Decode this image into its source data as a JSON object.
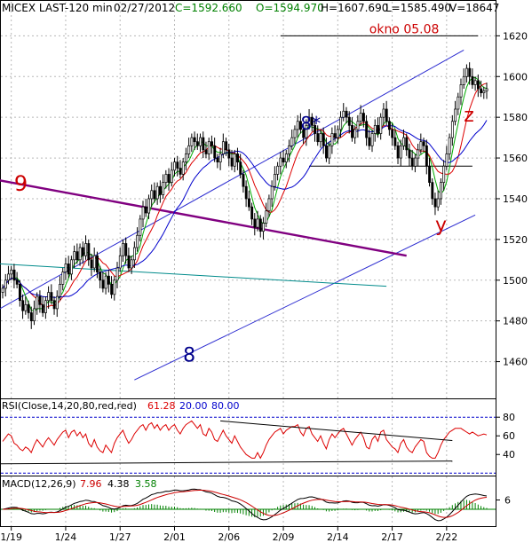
{
  "chart_data": [
    {
      "type": "candlestick",
      "panel": "price",
      "header": {
        "symbol": "MICEX LAST-120 min",
        "date": "02/27/2012",
        "close": "C=1592.660",
        "open": "O=1594.970",
        "high": "H=1607.690",
        "low": "L=1585.490",
        "volume": "V=18647"
      },
      "ylim": [
        1445,
        1628
      ],
      "y_ticks": [
        {
          "v": 1460,
          "label": "1460"
        },
        {
          "v": 1480,
          "label": "1480"
        },
        {
          "v": 1500,
          "label": "1500"
        },
        {
          "v": 1520,
          "label": "1520"
        },
        {
          "v": 1540,
          "label": "1540"
        },
        {
          "v": 1560,
          "label": "1560"
        },
        {
          "v": 1580,
          "label": "1580"
        },
        {
          "v": 1600,
          "label": "1600"
        },
        {
          "v": 1620,
          "label": "1620"
        }
      ],
      "x_ticks": [
        {
          "bar": 3,
          "label": "1/19"
        },
        {
          "bar": 22,
          "label": "1/24"
        },
        {
          "bar": 41,
          "label": "1/27"
        },
        {
          "bar": 60,
          "label": "2/01"
        },
        {
          "bar": 79,
          "label": "2/06"
        },
        {
          "bar": 98,
          "label": "2/09"
        },
        {
          "bar": 117,
          "label": "2/14"
        },
        {
          "bar": 136,
          "label": "2/17"
        },
        {
          "bar": 155,
          "label": "2/22"
        }
      ],
      "bar_count": 170,
      "closes": [
        1496,
        1500,
        1503,
        1505,
        1500,
        1498,
        1490,
        1485,
        1488,
        1484,
        1480,
        1486,
        1492,
        1488,
        1484,
        1490,
        1494,
        1490,
        1486,
        1492,
        1498,
        1504,
        1508,
        1503,
        1510,
        1514,
        1510,
        1516,
        1512,
        1518,
        1510,
        1506,
        1512,
        1504,
        1500,
        1496,
        1502,
        1498,
        1493,
        1500,
        1506,
        1512,
        1518,
        1512,
        1506,
        1510,
        1516,
        1522,
        1530,
        1536,
        1533,
        1540,
        1544,
        1540,
        1546,
        1542,
        1548,
        1552,
        1548,
        1554,
        1558,
        1555,
        1552,
        1558,
        1562,
        1566,
        1570,
        1568,
        1566,
        1570,
        1564,
        1562,
        1568,
        1566,
        1560,
        1558,
        1562,
        1568,
        1564,
        1560,
        1556,
        1562,
        1558,
        1552,
        1546,
        1540,
        1536,
        1530,
        1526,
        1530,
        1524,
        1528,
        1534,
        1540,
        1546,
        1552,
        1556,
        1560,
        1558,
        1562,
        1566,
        1570,
        1574,
        1578,
        1574,
        1570,
        1576,
        1580,
        1576,
        1572,
        1568,
        1572,
        1566,
        1560,
        1566,
        1572,
        1570,
        1574,
        1580,
        1583,
        1580,
        1576,
        1570,
        1574,
        1578,
        1582,
        1578,
        1570,
        1566,
        1572,
        1576,
        1572,
        1580,
        1584,
        1578,
        1574,
        1570,
        1566,
        1560,
        1566,
        1570,
        1564,
        1560,
        1556,
        1560,
        1564,
        1568,
        1566,
        1556,
        1548,
        1540,
        1536,
        1540,
        1548,
        1556,
        1562,
        1570,
        1578,
        1584,
        1590,
        1596,
        1600,
        1604,
        1600,
        1596,
        1598,
        1594,
        1592,
        1593,
        1594
      ],
      "annotations": [
        {
          "text": "okno 05.08",
          "v": 1620,
          "color": "#cc0000"
        },
        {
          "text": "8*",
          "v": 1574,
          "color": "#00008b"
        },
        {
          "text": "9",
          "v": 1544,
          "color": "#cc0000"
        },
        {
          "text": "8",
          "v": 1460,
          "color": "#00008b"
        },
        {
          "text": "y",
          "v": 1524,
          "color": "#cc0000"
        },
        {
          "text": "z",
          "v": 1578,
          "color": "#cc0000"
        }
      ],
      "colors": {
        "candles": "#000000",
        "channel": "#2b2bd0",
        "trend_9": "#800080",
        "teal_line": "#008b8b",
        "ma_fast": "#00aa00",
        "ma_mid": "#dd0000",
        "ma_slow": "#0000cc"
      }
    },
    {
      "type": "line",
      "panel": "rsi",
      "label": "RSI(Close,14,20,80,red,red)",
      "value_1": "61.28",
      "value_2": "20.00",
      "value_3": "80.00",
      "ylim": [
        25,
        84
      ],
      "y_ticks": [
        {
          "v": 40,
          "label": "40"
        },
        {
          "v": 60,
          "label": "60"
        },
        {
          "v": 80,
          "label": "80"
        }
      ],
      "levels": [
        20,
        80
      ],
      "values": [
        54,
        58,
        62,
        60,
        52,
        50,
        46,
        44,
        48,
        46,
        42,
        50,
        56,
        52,
        48,
        54,
        58,
        54,
        50,
        56,
        60,
        64,
        66,
        58,
        64,
        66,
        60,
        64,
        58,
        62,
        52,
        48,
        56,
        48,
        44,
        42,
        50,
        46,
        42,
        52,
        58,
        62,
        66,
        58,
        52,
        56,
        62,
        66,
        70,
        72,
        66,
        72,
        74,
        68,
        72,
        66,
        70,
        72,
        66,
        70,
        72,
        66,
        62,
        68,
        72,
        74,
        76,
        72,
        68,
        72,
        62,
        60,
        68,
        64,
        56,
        54,
        60,
        66,
        60,
        56,
        52,
        60,
        54,
        48,
        44,
        40,
        38,
        36,
        36,
        42,
        36,
        42,
        50,
        56,
        60,
        64,
        66,
        68,
        62,
        66,
        68,
        70,
        70,
        72,
        64,
        60,
        68,
        70,
        62,
        58,
        54,
        60,
        52,
        46,
        56,
        62,
        58,
        62,
        66,
        68,
        62,
        56,
        50,
        56,
        60,
        64,
        58,
        48,
        46,
        56,
        60,
        54,
        64,
        66,
        56,
        52,
        48,
        46,
        42,
        52,
        56,
        48,
        44,
        42,
        48,
        52,
        56,
        54,
        42,
        38,
        36,
        36,
        42,
        50,
        56,
        60,
        64,
        66,
        68,
        68,
        68,
        66,
        64,
        62,
        64,
        62,
        60,
        61,
        62,
        61
      ],
      "color": "#dd0000"
    },
    {
      "type": "line",
      "panel": "macd",
      "label": "MACD(12,26,9)",
      "value_1": "7.96",
      "value_2": "4.38",
      "value_3": "3.58",
      "ylim": [
        -8,
        12
      ],
      "y_ticks": [
        {
          "v": 6,
          "label": "6"
        }
      ],
      "colors": {
        "macd": "#000000",
        "signal": "#cc0000",
        "histogram": "#008000",
        "zero": "#008000"
      }
    }
  ]
}
